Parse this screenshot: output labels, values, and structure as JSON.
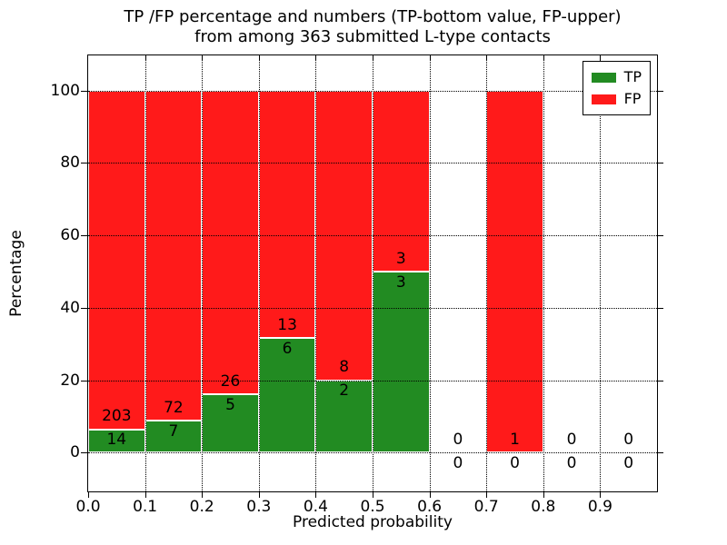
{
  "title": {
    "line1": "TP /FP percentage and numbers (TP-bottom value, FP-upper)",
    "line2": "from among 363 submitted L-type contacts"
  },
  "axes": {
    "x": {
      "label": "Predicted probability",
      "tick_values": [
        0.0,
        0.1,
        0.2,
        0.3,
        0.4,
        0.5,
        0.6,
        0.7,
        0.8,
        0.9
      ],
      "tick_labels": [
        "0.0",
        "0.1",
        "0.2",
        "0.3",
        "0.4",
        "0.5",
        "0.6",
        "0.7",
        "0.8",
        "0.9"
      ],
      "range": [
        0.0,
        1.0
      ]
    },
    "y": {
      "label": "Percentage",
      "tick_values": [
        0,
        20,
        40,
        60,
        80,
        100
      ],
      "tick_labels": [
        "0",
        "20",
        "40",
        "60",
        "80",
        "100"
      ],
      "range": [
        -10.7,
        109.7
      ]
    }
  },
  "legend": {
    "items": [
      {
        "label": "TP",
        "color": "#228B22"
      },
      {
        "label": "FP",
        "color": "#FF1A1A"
      }
    ]
  },
  "colors": {
    "tp": "#228B22",
    "fp": "#FF1A1A",
    "grid": "#000000",
    "background": "#FFFFFF"
  },
  "chart_data": {
    "type": "bar",
    "stacked": true,
    "title": "TP /FP percentage and numbers (TP-bottom value, FP-upper) from among 363 submitted L-type contacts",
    "xlabel": "Predicted probability",
    "ylabel": "Percentage",
    "total_contacts": 363,
    "bin_width": 0.1,
    "xlim": [
      0.0,
      1.0
    ],
    "ylim": [
      -10.7,
      109.7
    ],
    "grid": "dotted",
    "legend_position": "upper right",
    "series_names": [
      "TP",
      "FP"
    ],
    "bins": [
      {
        "x0": 0.0,
        "x1": 0.1,
        "tp": 14,
        "fp": 203,
        "tp_pct": 6.45,
        "fp_pct": 93.55
      },
      {
        "x0": 0.1,
        "x1": 0.2,
        "tp": 7,
        "fp": 72,
        "tp_pct": 8.86,
        "fp_pct": 91.14
      },
      {
        "x0": 0.2,
        "x1": 0.3,
        "tp": 5,
        "fp": 26,
        "tp_pct": 16.13,
        "fp_pct": 83.87
      },
      {
        "x0": 0.3,
        "x1": 0.4,
        "tp": 6,
        "fp": 13,
        "tp_pct": 31.58,
        "fp_pct": 68.42
      },
      {
        "x0": 0.4,
        "x1": 0.5,
        "tp": 2,
        "fp": 8,
        "tp_pct": 20.0,
        "fp_pct": 80.0
      },
      {
        "x0": 0.5,
        "x1": 0.6,
        "tp": 3,
        "fp": 3,
        "tp_pct": 50.0,
        "fp_pct": 50.0
      },
      {
        "x0": 0.6,
        "x1": 0.7,
        "tp": 0,
        "fp": 0,
        "tp_pct": 0.0,
        "fp_pct": 0.0
      },
      {
        "x0": 0.7,
        "x1": 0.8,
        "tp": 0,
        "fp": 1,
        "tp_pct": 0.0,
        "fp_pct": 100.0
      },
      {
        "x0": 0.8,
        "x1": 0.9,
        "tp": 0,
        "fp": 0,
        "tp_pct": 0.0,
        "fp_pct": 0.0
      },
      {
        "x0": 0.9,
        "x1": 1.0,
        "tp": 0,
        "fp": 0,
        "tp_pct": 0.0,
        "fp_pct": 0.0
      }
    ]
  }
}
